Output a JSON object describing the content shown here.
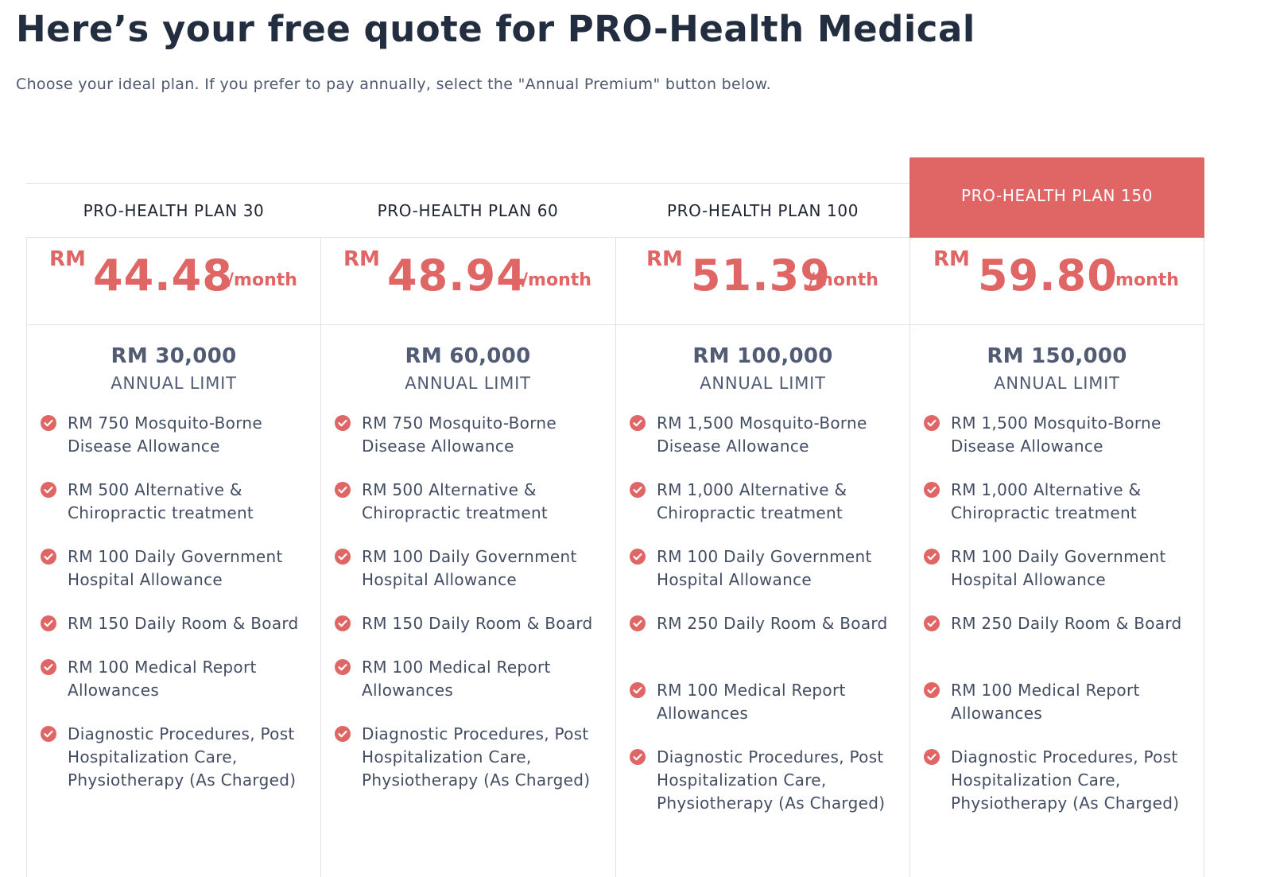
{
  "page": {
    "title": "Here’s your free quote for PRO-Health Medical",
    "subtitle": "Choose your ideal plan. If you prefer to pay annually, select the \"Annual Premium\" button below."
  },
  "colors": {
    "accent": "#e06565",
    "text": "#232d40",
    "border": "#dfe3e8"
  },
  "plans": [
    {
      "name": "PRO-HEALTH PLAN 30",
      "currency": "RM",
      "price": "44.48",
      "period": "/month",
      "limit_value": "RM 30,000",
      "limit_label": "ANNUAL LIMIT",
      "features": [
        "RM 750 Mosquito-Borne Disease Allowance",
        "RM 500 Alternative & Chiropractic treatment",
        "RM 100 Daily Government Hospital Allowance",
        "RM 150 Daily Room & Board",
        "RM 100 Medical Report Allowances",
        "Diagnostic Procedures, Post Hospitalization Care, Physiotherapy (As Charged)"
      ]
    },
    {
      "name": "PRO-HEALTH PLAN 60",
      "currency": "RM",
      "price": "48.94",
      "period": "/month",
      "limit_value": "RM 60,000",
      "limit_label": "ANNUAL LIMIT",
      "features": [
        "RM 750 Mosquito-Borne Disease Allowance",
        "RM 500 Alternative & Chiropractic treatment",
        "RM 100 Daily Government Hospital Allowance",
        "RM 150 Daily Room & Board",
        "RM 100 Medical Report Allowances",
        "Diagnostic Procedures, Post Hospitalization Care, Physiotherapy (As Charged)"
      ]
    },
    {
      "name": "PRO-HEALTH PLAN 100",
      "currency": "RM",
      "price": "51.39",
      "period": "/month",
      "limit_value": "RM 100,000",
      "limit_label": "ANNUAL LIMIT",
      "features": [
        "RM 1,500 Mosquito-Borne Disease Allowance",
        "RM 1,000 Alternative & Chiropractic treatment",
        "RM 100 Daily Government Hospital Allowance",
        "RM 250 Daily Room & Board",
        "RM 100 Medical Report Allowances",
        "Diagnostic Procedures, Post Hospitalization Care, Physiotherapy (As Charged)"
      ]
    },
    {
      "name": "PRO-HEALTH PLAN 150",
      "featured": true,
      "currency": "RM",
      "price": "59.80",
      "period": "/month",
      "limit_value": "RM 150,000",
      "limit_label": "ANNUAL LIMIT",
      "features": [
        "RM 1,500 Mosquito-Borne Disease Allowance",
        "RM 1,000 Alternative & Chiropractic treatment",
        "RM 100 Daily Government Hospital Allowance",
        "RM 250 Daily Room & Board",
        "RM 100 Medical Report Allowances",
        "Diagnostic Procedures, Post Hospitalization Care, Physiotherapy (As Charged)"
      ]
    }
  ],
  "icons": {
    "feature_check": "check-circle-icon"
  }
}
